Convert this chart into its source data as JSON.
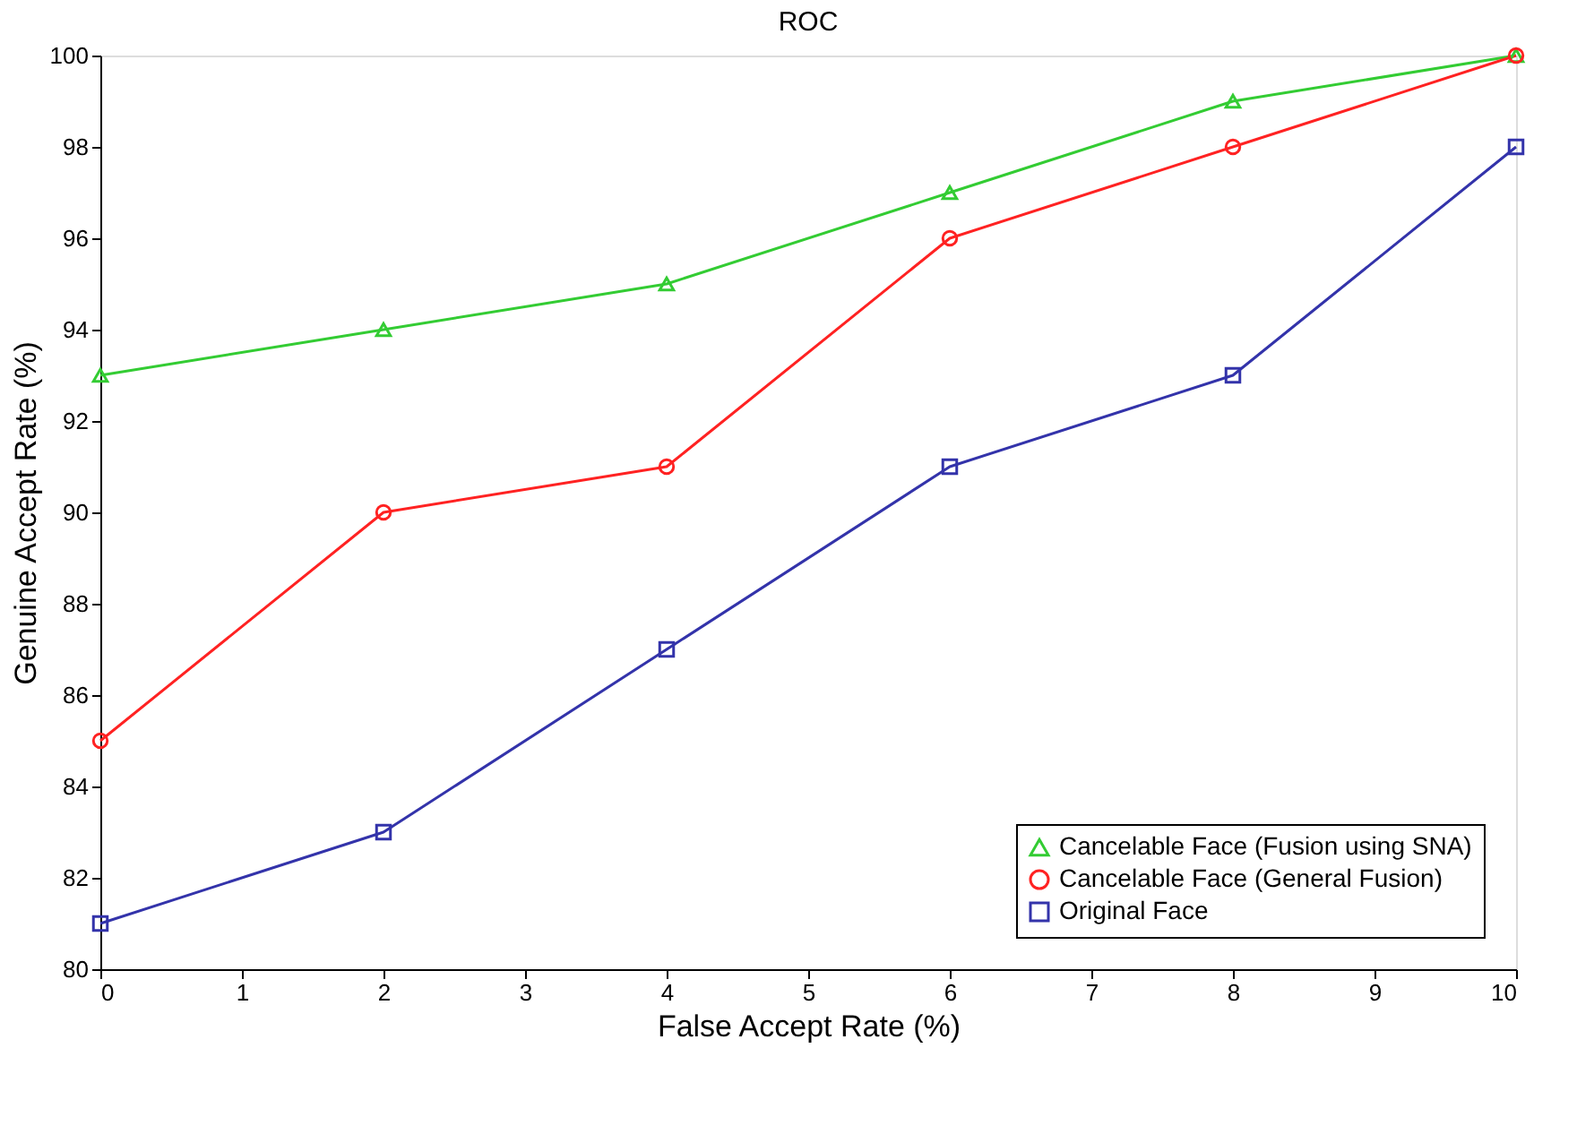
{
  "chart_data": {
    "type": "line",
    "title": "ROC",
    "xlabel": "False Accept Rate (%)",
    "ylabel": "Genuine Accept Rate (%)",
    "x": [
      0,
      2,
      4,
      6,
      8,
      10
    ],
    "series": [
      {
        "name": "Cancelable Face (Fusion using SNA)",
        "color": "#33cc33",
        "marker": "triangle",
        "values": [
          93,
          94,
          95,
          97,
          99,
          100
        ]
      },
      {
        "name": "Cancelable Face (General Fusion)",
        "color": "#ff2222",
        "marker": "circle",
        "values": [
          85,
          90,
          91,
          96,
          98,
          100
        ]
      },
      {
        "name": "Original Face",
        "color": "#3333aa",
        "marker": "square",
        "values": [
          81,
          83,
          87,
          91,
          93,
          98
        ]
      }
    ],
    "xlim": [
      0,
      10
    ],
    "xticks": [
      0,
      1,
      2,
      3,
      4,
      5,
      6,
      7,
      8,
      9,
      10
    ],
    "ylim": [
      80,
      100
    ],
    "yticks": [
      80,
      82,
      84,
      86,
      88,
      90,
      92,
      94,
      96,
      98,
      100
    ],
    "grid": false,
    "legend": "bottom right",
    "line_style": "solid"
  }
}
